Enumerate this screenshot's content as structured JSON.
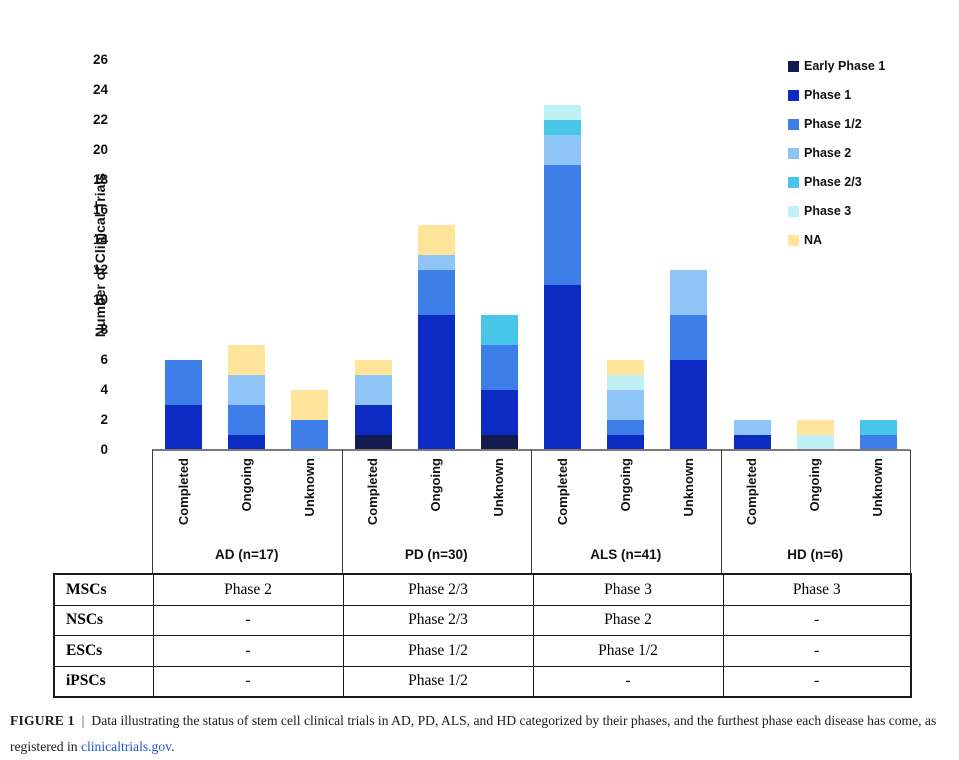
{
  "chart_data": {
    "type": "bar",
    "stacked": true,
    "title": "",
    "ylabel": "Number of Clinical Trials",
    "ylim": [
      0,
      26
    ],
    "yticks": [
      0,
      2,
      4,
      6,
      8,
      10,
      12,
      14,
      16,
      18,
      20,
      22,
      24,
      26
    ],
    "grid": false,
    "legend_position": "top-right",
    "legend": [
      {
        "name": "Early Phase 1",
        "color": "#131B4F"
      },
      {
        "name": "Phase 1",
        "color": "#0C2BC3"
      },
      {
        "name": "Phase 1/2",
        "color": "#3D7EE8"
      },
      {
        "name": "Phase 2",
        "color": "#8FC4F6"
      },
      {
        "name": "Phase 2/3",
        "color": "#48C6E9"
      },
      {
        "name": "Phase 3",
        "color": "#BFF0F5"
      },
      {
        "name": "NA",
        "color": "#FFE499"
      }
    ],
    "status_labels": [
      "Completed",
      "Ongoing",
      "Unknown"
    ],
    "groups": [
      {
        "label": "AD (n=17)",
        "bars": [
          {
            "status": "Completed",
            "total": 6,
            "segments": [
              {
                "phase": "Phase 1",
                "value": 3
              },
              {
                "phase": "Phase 1/2",
                "value": 3
              }
            ]
          },
          {
            "status": "Ongoing",
            "total": 7,
            "segments": [
              {
                "phase": "Phase 1",
                "value": 1
              },
              {
                "phase": "Phase 1/2",
                "value": 2
              },
              {
                "phase": "Phase 2",
                "value": 2
              },
              {
                "phase": "NA",
                "value": 2
              }
            ]
          },
          {
            "status": "Unknown",
            "total": 4,
            "segments": [
              {
                "phase": "Phase 1/2",
                "value": 2
              },
              {
                "phase": "NA",
                "value": 2
              }
            ]
          }
        ]
      },
      {
        "label": "PD (n=30)",
        "bars": [
          {
            "status": "Completed",
            "total": 6,
            "segments": [
              {
                "phase": "Early Phase 1",
                "value": 1
              },
              {
                "phase": "Phase 1",
                "value": 2
              },
              {
                "phase": "Phase 2",
                "value": 2
              },
              {
                "phase": "NA",
                "value": 1
              }
            ]
          },
          {
            "status": "Ongoing",
            "total": 15,
            "segments": [
              {
                "phase": "Phase 1",
                "value": 9
              },
              {
                "phase": "Phase 1/2",
                "value": 3
              },
              {
                "phase": "Phase 2",
                "value": 1
              },
              {
                "phase": "NA",
                "value": 2
              }
            ]
          },
          {
            "status": "Unknown",
            "total": 9,
            "segments": [
              {
                "phase": "Early Phase 1",
                "value": 1
              },
              {
                "phase": "Phase 1",
                "value": 3
              },
              {
                "phase": "Phase 1/2",
                "value": 3
              },
              {
                "phase": "Phase 2/3",
                "value": 2
              }
            ]
          }
        ]
      },
      {
        "label": "ALS (n=41)",
        "bars": [
          {
            "status": "Completed",
            "total": 23,
            "segments": [
              {
                "phase": "Phase 1",
                "value": 11
              },
              {
                "phase": "Phase 1/2",
                "value": 8
              },
              {
                "phase": "Phase 2",
                "value": 2
              },
              {
                "phase": "Phase 2/3",
                "value": 1
              },
              {
                "phase": "Phase 3",
                "value": 1
              }
            ]
          },
          {
            "status": "Ongoing",
            "total": 6,
            "segments": [
              {
                "phase": "Phase 1",
                "value": 1
              },
              {
                "phase": "Phase 1/2",
                "value": 1
              },
              {
                "phase": "Phase 2",
                "value": 2
              },
              {
                "phase": "Phase 3",
                "value": 1
              },
              {
                "phase": "NA",
                "value": 1
              }
            ]
          },
          {
            "status": "Unknown",
            "total": 12,
            "segments": [
              {
                "phase": "Phase 1",
                "value": 6
              },
              {
                "phase": "Phase 1/2",
                "value": 3
              },
              {
                "phase": "Phase 2",
                "value": 3
              }
            ]
          }
        ]
      },
      {
        "label": "HD (n=6)",
        "bars": [
          {
            "status": "Completed",
            "total": 2,
            "segments": [
              {
                "phase": "Phase 1",
                "value": 1
              },
              {
                "phase": "Phase 2",
                "value": 1
              }
            ]
          },
          {
            "status": "Ongoing",
            "total": 2,
            "segments": [
              {
                "phase": "Phase 3",
                "value": 1
              },
              {
                "phase": "NA",
                "value": 1
              }
            ]
          },
          {
            "status": "Unknown",
            "total": 2,
            "segments": [
              {
                "phase": "Phase 1/2",
                "value": 1
              },
              {
                "phase": "Phase 2/3",
                "value": 1
              }
            ]
          }
        ]
      }
    ]
  },
  "table": {
    "columns": [
      "AD",
      "PD",
      "ALS",
      "HD"
    ],
    "rows": [
      {
        "header": "MSCs",
        "values": [
          "Phase 2",
          "Phase 2/3",
          "Phase 3",
          "Phase 3"
        ]
      },
      {
        "header": "NSCs",
        "values": [
          "-",
          "Phase 2/3",
          "Phase 2",
          "-"
        ]
      },
      {
        "header": "ESCs",
        "values": [
          "-",
          "Phase 1/2",
          "Phase 1/2",
          "-"
        ]
      },
      {
        "header": "iPSCs",
        "values": [
          "-",
          "Phase 1/2",
          "-",
          "-"
        ]
      }
    ]
  },
  "caption": {
    "label": "FIGURE 1",
    "separator": "|",
    "text": "Data illustrating the status of stem cell clinical trials in AD, PD, ALS, and HD categorized by their phases, and the furthest phase each disease has come, as registered in ",
    "link": "clinicaltrials.gov",
    "suffix": "."
  }
}
